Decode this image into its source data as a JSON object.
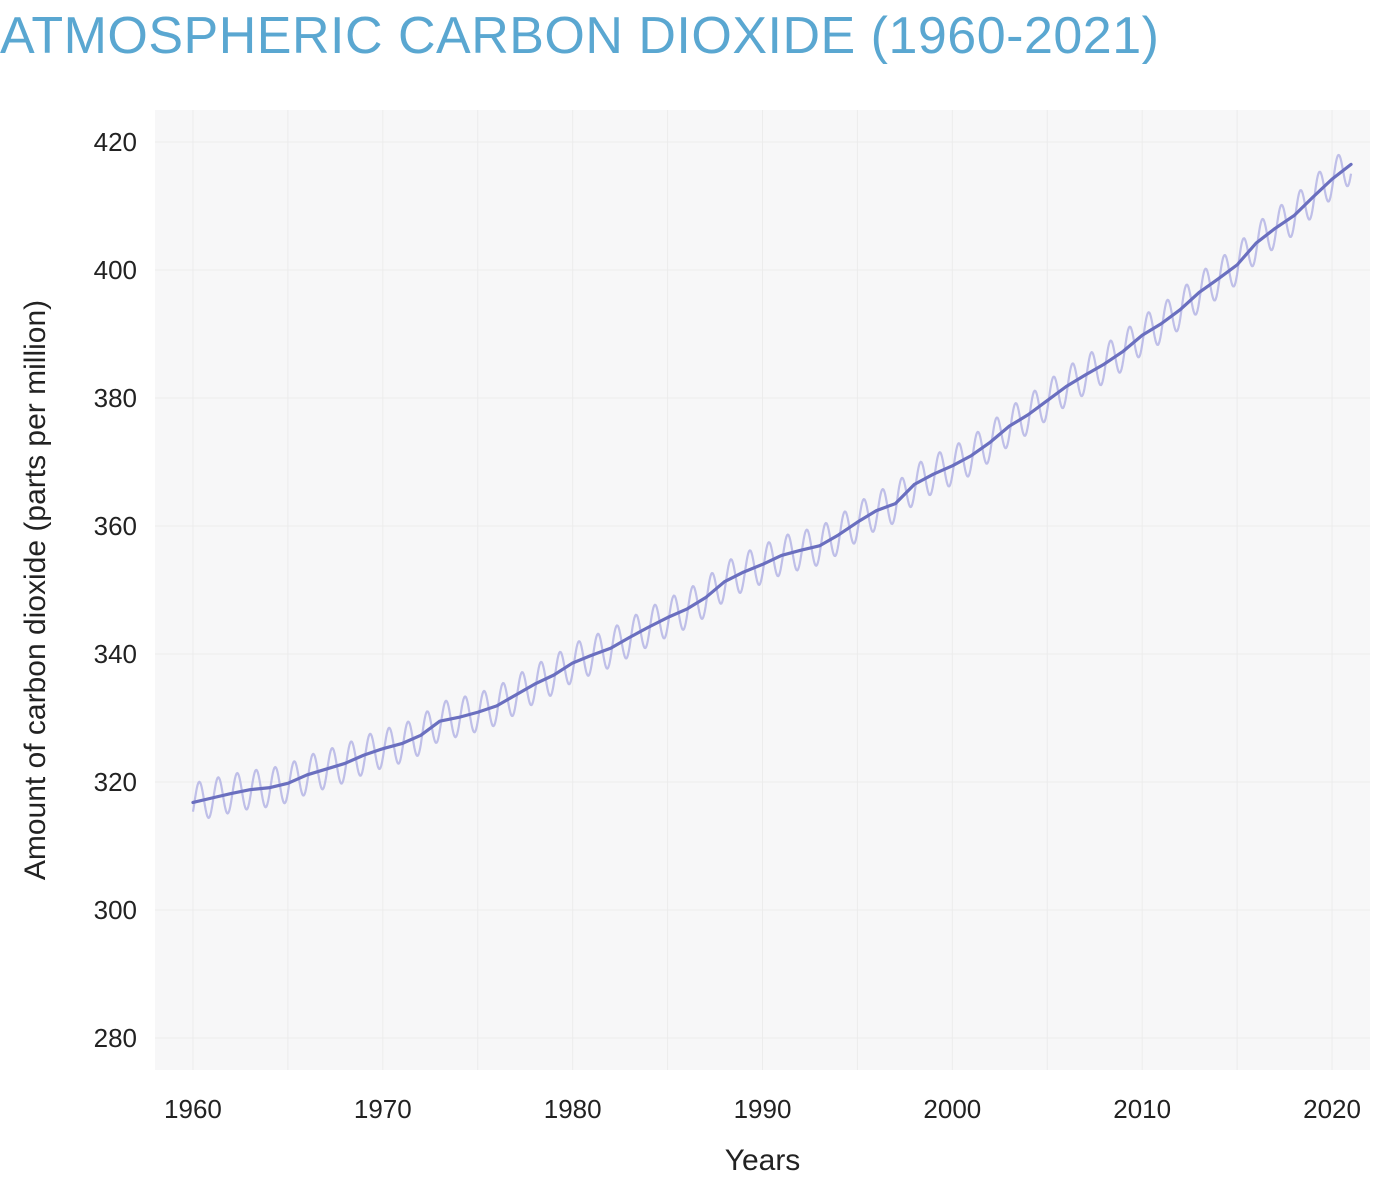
{
  "chart": {
    "type": "line",
    "title": "ATMOSPHERIC CARBON DIOXIDE (1960-2021)",
    "title_color": "#5aa7d1",
    "title_fontsize": 52,
    "xlabel": "Years",
    "ylabel": "Amount of carbon dioxide (parts per million)",
    "label_fontsize": 30,
    "tick_fontsize": 26,
    "background_color": "#ffffff",
    "grid_color": "#ececec",
    "grid_width": 1,
    "plot_bg_tint": "#f7f7f8",
    "xlim": [
      1958,
      2022
    ],
    "ylim": [
      275,
      425
    ],
    "xticks": [
      1960,
      1970,
      1980,
      1990,
      2000,
      2010,
      2020
    ],
    "yticks": [
      280,
      300,
      320,
      340,
      360,
      380,
      400,
      420
    ],
    "trend": {
      "color": "#6a6fbf",
      "width": 3.2,
      "opacity": 1.0,
      "points": [
        [
          1960,
          316.8
        ],
        [
          1961,
          317.5
        ],
        [
          1962,
          318.2
        ],
        [
          1963,
          318.8
        ],
        [
          1964,
          319.1
        ],
        [
          1965,
          319.8
        ],
        [
          1966,
          321.1
        ],
        [
          1967,
          322.0
        ],
        [
          1968,
          322.9
        ],
        [
          1969,
          324.2
        ],
        [
          1970,
          325.2
        ],
        [
          1971,
          326.0
        ],
        [
          1972,
          327.3
        ],
        [
          1973,
          329.5
        ],
        [
          1974,
          330.1
        ],
        [
          1975,
          330.9
        ],
        [
          1976,
          331.9
        ],
        [
          1977,
          333.6
        ],
        [
          1978,
          335.3
        ],
        [
          1979,
          336.7
        ],
        [
          1980,
          338.6
        ],
        [
          1981,
          339.8
        ],
        [
          1982,
          340.9
        ],
        [
          1983,
          342.6
        ],
        [
          1984,
          344.2
        ],
        [
          1985,
          345.7
        ],
        [
          1986,
          347.0
        ],
        [
          1987,
          348.8
        ],
        [
          1988,
          351.3
        ],
        [
          1989,
          352.8
        ],
        [
          1990,
          354.0
        ],
        [
          1991,
          355.4
        ],
        [
          1992,
          356.2
        ],
        [
          1993,
          356.9
        ],
        [
          1994,
          358.6
        ],
        [
          1995,
          360.6
        ],
        [
          1996,
          362.4
        ],
        [
          1997,
          363.5
        ],
        [
          1998,
          366.5
        ],
        [
          1999,
          368.1
        ],
        [
          2000,
          369.4
        ],
        [
          2001,
          371.0
        ],
        [
          2002,
          373.1
        ],
        [
          2003,
          375.6
        ],
        [
          2004,
          377.4
        ],
        [
          2005,
          379.6
        ],
        [
          2006,
          381.8
        ],
        [
          2007,
          383.6
        ],
        [
          2008,
          385.3
        ],
        [
          2009,
          387.3
        ],
        [
          2010,
          389.8
        ],
        [
          2011,
          391.6
        ],
        [
          2012,
          393.8
        ],
        [
          2013,
          396.5
        ],
        [
          2014,
          398.6
        ],
        [
          2015,
          400.8
        ],
        [
          2016,
          404.2
        ],
        [
          2017,
          406.5
        ],
        [
          2018,
          408.5
        ],
        [
          2019,
          411.4
        ],
        [
          2020,
          414.2
        ],
        [
          2021,
          416.5
        ]
      ]
    },
    "seasonal": {
      "color": "#b8b8e6",
      "width": 2.2,
      "opacity": 0.9,
      "amplitude": 3.0,
      "cycles_per_year": 1
    }
  }
}
